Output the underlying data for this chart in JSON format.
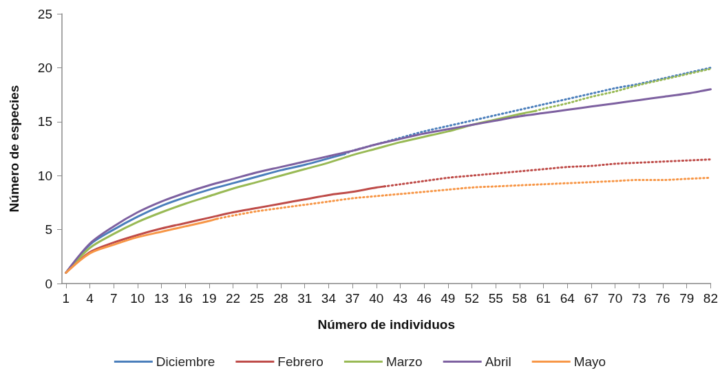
{
  "chart_data": {
    "type": "line",
    "xlabel": "Número de individuos",
    "ylabel": "Número de especies",
    "xlim": [
      0.5,
      82
    ],
    "xticks": [
      1,
      4,
      7,
      10,
      13,
      16,
      19,
      22,
      25,
      28,
      31,
      34,
      37,
      40,
      43,
      46,
      49,
      52,
      55,
      58,
      61,
      64,
      67,
      70,
      73,
      76,
      79,
      82
    ],
    "ylim": [
      0,
      25
    ],
    "yticks": [
      0,
      5,
      10,
      15,
      20,
      25
    ],
    "grid": false,
    "legend": "bottom",
    "marker": "none",
    "series": [
      {
        "name": "Diciembre",
        "color": "#4a7ebb",
        "line_style": "solid",
        "x": [
          1,
          4,
          7,
          10,
          13,
          16,
          19,
          22,
          25,
          28,
          31,
          34,
          36
        ],
        "values": [
          1,
          3.6,
          5.0,
          6.2,
          7.2,
          8.0,
          8.7,
          9.3,
          9.9,
          10.5,
          11.0,
          11.6,
          12.0
        ]
      },
      {
        "name": "Febrero",
        "color": "#be4b48",
        "line_style": "solid",
        "x": [
          1,
          4,
          7,
          10,
          13,
          16,
          19,
          22,
          25,
          28,
          31,
          34,
          37,
          40,
          41
        ],
        "values": [
          1,
          2.9,
          3.8,
          4.5,
          5.1,
          5.6,
          6.1,
          6.6,
          7.0,
          7.4,
          7.8,
          8.2,
          8.5,
          8.9,
          9.0
        ]
      },
      {
        "name": "Marzo",
        "color": "#98b954",
        "line_style": "solid",
        "x": [
          1,
          4,
          7,
          10,
          13,
          16,
          19,
          22,
          25,
          28,
          31,
          34,
          37,
          40,
          43,
          46,
          49,
          52,
          55,
          58,
          60
        ],
        "values": [
          1,
          3.3,
          4.6,
          5.7,
          6.6,
          7.4,
          8.1,
          8.8,
          9.4,
          10.0,
          10.6,
          11.2,
          11.9,
          12.5,
          13.1,
          13.6,
          14.1,
          14.7,
          15.2,
          15.7,
          16.0
        ]
      },
      {
        "name": "Abril",
        "color": "#7d60a0",
        "line_style": "solid",
        "x": [
          1,
          4,
          7,
          10,
          13,
          16,
          19,
          22,
          25,
          28,
          31,
          34,
          37,
          40,
          43,
          46,
          49,
          52,
          55,
          58,
          61,
          64,
          67,
          70,
          73,
          76,
          79,
          82
        ],
        "values": [
          1,
          3.7,
          5.3,
          6.6,
          7.6,
          8.4,
          9.1,
          9.7,
          10.3,
          10.8,
          11.3,
          11.8,
          12.3,
          12.9,
          13.4,
          13.9,
          14.3,
          14.7,
          15.1,
          15.5,
          15.8,
          16.1,
          16.4,
          16.7,
          17.0,
          17.3,
          17.6,
          18.0
        ]
      },
      {
        "name": "Mayo",
        "color": "#f79646",
        "line_style": "solid",
        "x": [
          1,
          4,
          7,
          10,
          13,
          16,
          19,
          20
        ],
        "values": [
          1,
          2.8,
          3.6,
          4.3,
          4.8,
          5.3,
          5.8,
          6.0
        ]
      },
      {
        "color": "#4a7ebb",
        "line_style": "dotted",
        "x": [
          36,
          37,
          40,
          43,
          46,
          49,
          52,
          55,
          58,
          61,
          64,
          67,
          70,
          73,
          76,
          79,
          82
        ],
        "values": [
          12.0,
          12.3,
          12.9,
          13.5,
          14.1,
          14.6,
          15.1,
          15.6,
          16.1,
          16.6,
          17.1,
          17.6,
          18.1,
          18.5,
          19.0,
          19.5,
          20.0
        ]
      },
      {
        "color": "#be4b48",
        "line_style": "dotted",
        "x": [
          41,
          43,
          46,
          49,
          52,
          55,
          58,
          61,
          64,
          67,
          70,
          73,
          76,
          79,
          82
        ],
        "values": [
          9.0,
          9.2,
          9.5,
          9.8,
          10.0,
          10.2,
          10.4,
          10.6,
          10.8,
          10.9,
          11.1,
          11.2,
          11.3,
          11.4,
          11.5
        ]
      },
      {
        "color": "#98b954",
        "line_style": "dotted",
        "x": [
          60,
          61,
          64,
          67,
          70,
          73,
          76,
          79,
          82
        ],
        "values": [
          16.0,
          16.2,
          16.7,
          17.3,
          17.8,
          18.4,
          18.9,
          19.4,
          19.9
        ]
      },
      {
        "color": "#f79646",
        "line_style": "dotted",
        "x": [
          20,
          22,
          25,
          28,
          31,
          34,
          37,
          40,
          43,
          46,
          49,
          52,
          55,
          58,
          61,
          64,
          67,
          70,
          73,
          76,
          79,
          82
        ],
        "values": [
          6.0,
          6.3,
          6.7,
          7.0,
          7.3,
          7.6,
          7.9,
          8.1,
          8.3,
          8.5,
          8.7,
          8.9,
          9.0,
          9.1,
          9.2,
          9.3,
          9.4,
          9.5,
          9.6,
          9.6,
          9.7,
          9.8
        ]
      }
    ]
  }
}
